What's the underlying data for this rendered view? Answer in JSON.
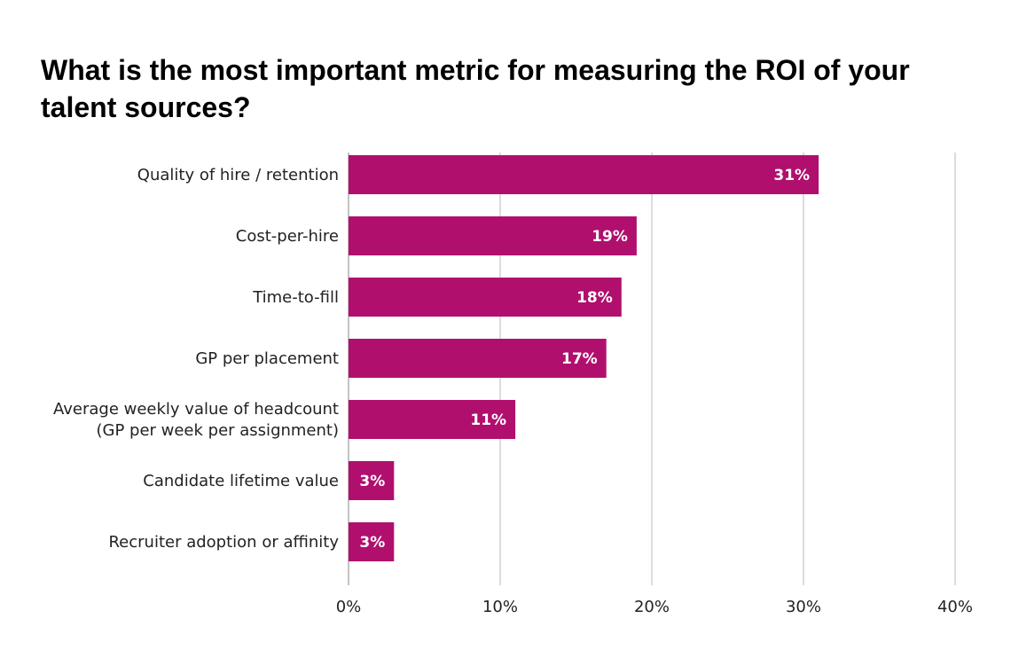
{
  "chart_data": {
    "type": "bar",
    "orientation": "horizontal",
    "title": "What is the most important metric for measuring the ROI of your talent sources?",
    "categories": [
      [
        "Quality of hire / retention"
      ],
      [
        "Cost-per-hire"
      ],
      [
        "Time-to-fill"
      ],
      [
        "GP per placement"
      ],
      [
        "Average weekly value of headcount",
        "(GP per week per assignment)"
      ],
      [
        "Candidate lifetime value"
      ],
      [
        "Recruiter adoption or affinity"
      ]
    ],
    "values": [
      31,
      19,
      18,
      17,
      11,
      3,
      3
    ],
    "data_labels": [
      "31%",
      "19%",
      "18%",
      "17%",
      "11%",
      "3%",
      "3%"
    ],
    "xlim": [
      0,
      40
    ],
    "x_ticks": [
      0,
      10,
      20,
      30,
      40
    ],
    "x_tick_labels": [
      "0%",
      "10%",
      "20%",
      "30%",
      "40%"
    ],
    "grid": "vertical",
    "colors": {
      "bar": "#b10f6e",
      "grid": "#d0d0d0",
      "axis": "#b0b0b0"
    }
  }
}
